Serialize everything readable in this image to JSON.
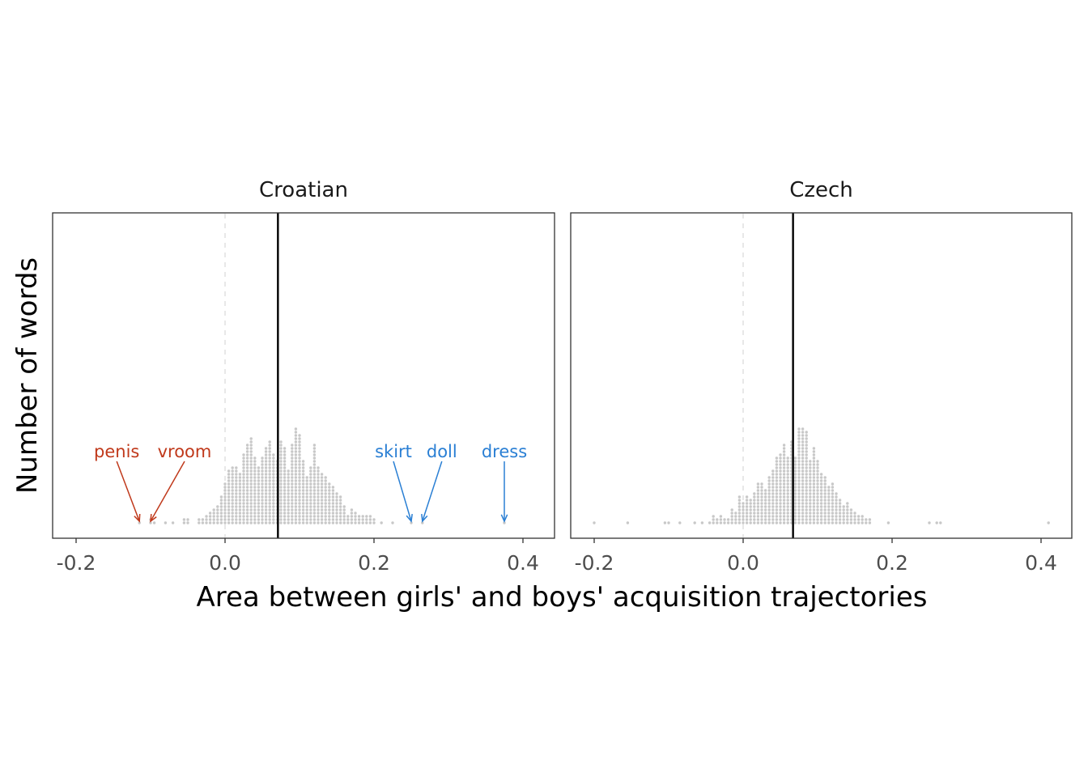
{
  "chart_data": {
    "type": "histogram",
    "xlabel": "Area between girls' and boys' acquisition trajectories",
    "ylabel": "Number of words",
    "xlim": [
      -0.23,
      0.4
    ],
    "xticks": [
      "-0.2",
      "0.0",
      "0.2",
      "0.4"
    ],
    "bin_width": 0.005,
    "dot_unit": "one stacked dot per word",
    "colors": {
      "dots": "#c8c8c8",
      "mean_line": "#000000",
      "zero_line": "#d9d9d9",
      "girl_words": "#2a7fd4",
      "boy_words": "#c0391b"
    },
    "panels": [
      {
        "name": "Croatian",
        "mean": 0.071,
        "bins": [
          {
            "x": -0.115,
            "count": 1
          },
          {
            "x": -0.1,
            "count": 2
          },
          {
            "x": -0.095,
            "count": 1
          },
          {
            "x": -0.08,
            "count": 1
          },
          {
            "x": -0.07,
            "count": 1
          },
          {
            "x": -0.055,
            "count": 2
          },
          {
            "x": -0.05,
            "count": 2
          },
          {
            "x": -0.035,
            "count": 2
          },
          {
            "x": -0.03,
            "count": 2
          },
          {
            "x": -0.025,
            "count": 3
          },
          {
            "x": -0.02,
            "count": 4
          },
          {
            "x": -0.015,
            "count": 5
          },
          {
            "x": -0.01,
            "count": 6
          },
          {
            "x": -0.005,
            "count": 9
          },
          {
            "x": 0.0,
            "count": 13
          },
          {
            "x": 0.005,
            "count": 17
          },
          {
            "x": 0.01,
            "count": 18
          },
          {
            "x": 0.015,
            "count": 18
          },
          {
            "x": 0.02,
            "count": 16
          },
          {
            "x": 0.025,
            "count": 22
          },
          {
            "x": 0.03,
            "count": 25
          },
          {
            "x": 0.035,
            "count": 27
          },
          {
            "x": 0.04,
            "count": 21
          },
          {
            "x": 0.045,
            "count": 18
          },
          {
            "x": 0.05,
            "count": 21
          },
          {
            "x": 0.055,
            "count": 24
          },
          {
            "x": 0.06,
            "count": 26
          },
          {
            "x": 0.065,
            "count": 22
          },
          {
            "x": 0.07,
            "count": 20
          },
          {
            "x": 0.075,
            "count": 26
          },
          {
            "x": 0.08,
            "count": 24
          },
          {
            "x": 0.085,
            "count": 17
          },
          {
            "x": 0.09,
            "count": 25
          },
          {
            "x": 0.095,
            "count": 30
          },
          {
            "x": 0.1,
            "count": 28
          },
          {
            "x": 0.105,
            "count": 20
          },
          {
            "x": 0.11,
            "count": 15
          },
          {
            "x": 0.115,
            "count": 18
          },
          {
            "x": 0.12,
            "count": 25
          },
          {
            "x": 0.125,
            "count": 18
          },
          {
            "x": 0.13,
            "count": 16
          },
          {
            "x": 0.135,
            "count": 15
          },
          {
            "x": 0.14,
            "count": 13
          },
          {
            "x": 0.145,
            "count": 12
          },
          {
            "x": 0.15,
            "count": 10
          },
          {
            "x": 0.155,
            "count": 9
          },
          {
            "x": 0.16,
            "count": 6
          },
          {
            "x": 0.165,
            "count": 3
          },
          {
            "x": 0.17,
            "count": 5
          },
          {
            "x": 0.175,
            "count": 4
          },
          {
            "x": 0.18,
            "count": 3
          },
          {
            "x": 0.185,
            "count": 3
          },
          {
            "x": 0.19,
            "count": 3
          },
          {
            "x": 0.195,
            "count": 3
          },
          {
            "x": 0.2,
            "count": 2
          },
          {
            "x": 0.21,
            "count": 1
          },
          {
            "x": 0.225,
            "count": 1
          },
          {
            "x": 0.25,
            "count": 1
          },
          {
            "x": 0.265,
            "count": 1
          },
          {
            "x": 0.375,
            "count": 1
          }
        ],
        "annotations": [
          {
            "label": "penis",
            "x": -0.115,
            "group": "boy"
          },
          {
            "label": "vroom",
            "x": -0.1,
            "group": "boy"
          },
          {
            "label": "skirt",
            "x": 0.25,
            "group": "girl"
          },
          {
            "label": "doll",
            "x": 0.265,
            "group": "girl"
          },
          {
            "label": "dress",
            "x": 0.375,
            "group": "girl"
          }
        ]
      },
      {
        "name": "Czech",
        "mean": 0.067,
        "bins": [
          {
            "x": -0.2,
            "count": 1
          },
          {
            "x": -0.155,
            "count": 1
          },
          {
            "x": -0.105,
            "count": 1
          },
          {
            "x": -0.1,
            "count": 1
          },
          {
            "x": -0.085,
            "count": 1
          },
          {
            "x": -0.065,
            "count": 1
          },
          {
            "x": -0.055,
            "count": 1
          },
          {
            "x": -0.045,
            "count": 1
          },
          {
            "x": -0.04,
            "count": 3
          },
          {
            "x": -0.035,
            "count": 2
          },
          {
            "x": -0.03,
            "count": 3
          },
          {
            "x": -0.025,
            "count": 2
          },
          {
            "x": -0.02,
            "count": 2
          },
          {
            "x": -0.015,
            "count": 5
          },
          {
            "x": -0.01,
            "count": 4
          },
          {
            "x": -0.005,
            "count": 9
          },
          {
            "x": 0.0,
            "count": 7
          },
          {
            "x": 0.005,
            "count": 9
          },
          {
            "x": 0.01,
            "count": 8
          },
          {
            "x": 0.015,
            "count": 10
          },
          {
            "x": 0.02,
            "count": 13
          },
          {
            "x": 0.025,
            "count": 13
          },
          {
            "x": 0.03,
            "count": 11
          },
          {
            "x": 0.035,
            "count": 15
          },
          {
            "x": 0.04,
            "count": 17
          },
          {
            "x": 0.045,
            "count": 21
          },
          {
            "x": 0.05,
            "count": 22
          },
          {
            "x": 0.055,
            "count": 25
          },
          {
            "x": 0.06,
            "count": 21
          },
          {
            "x": 0.065,
            "count": 26
          },
          {
            "x": 0.07,
            "count": 21
          },
          {
            "x": 0.075,
            "count": 30
          },
          {
            "x": 0.08,
            "count": 30
          },
          {
            "x": 0.085,
            "count": 29
          },
          {
            "x": 0.09,
            "count": 20
          },
          {
            "x": 0.095,
            "count": 24
          },
          {
            "x": 0.1,
            "count": 20
          },
          {
            "x": 0.105,
            "count": 16
          },
          {
            "x": 0.11,
            "count": 15
          },
          {
            "x": 0.115,
            "count": 12
          },
          {
            "x": 0.12,
            "count": 13
          },
          {
            "x": 0.125,
            "count": 10
          },
          {
            "x": 0.13,
            "count": 8
          },
          {
            "x": 0.135,
            "count": 6
          },
          {
            "x": 0.14,
            "count": 7
          },
          {
            "x": 0.145,
            "count": 5
          },
          {
            "x": 0.15,
            "count": 4
          },
          {
            "x": 0.155,
            "count": 3
          },
          {
            "x": 0.16,
            "count": 3
          },
          {
            "x": 0.165,
            "count": 2
          },
          {
            "x": 0.17,
            "count": 2
          },
          {
            "x": 0.195,
            "count": 1
          },
          {
            "x": 0.25,
            "count": 1
          },
          {
            "x": 0.26,
            "count": 1
          },
          {
            "x": 0.265,
            "count": 1
          },
          {
            "x": 0.41,
            "count": 1
          }
        ],
        "annotations": []
      }
    ]
  }
}
